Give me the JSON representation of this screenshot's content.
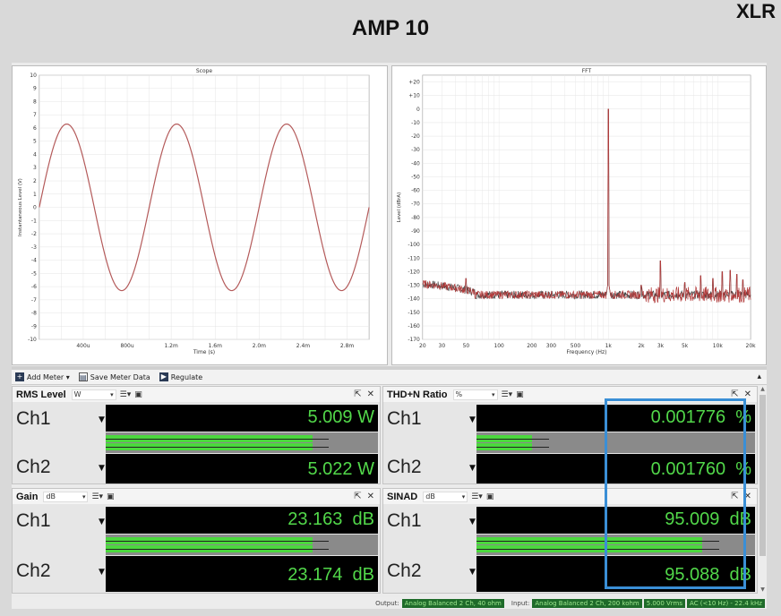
{
  "heading": {
    "title": "AMP 10",
    "corner": "XLR"
  },
  "chart_data": [
    {
      "type": "line",
      "title": "Scope",
      "xlabel": "Time (s)",
      "ylabel": "Instantaneous Level (V)",
      "xlim": [
        0,
        0.003
      ],
      "ylim": [
        -10,
        10
      ],
      "x_tick_labels": [
        "400u",
        "800u",
        "1.2m",
        "1.6m",
        "2.0m",
        "2.4m",
        "2.8m"
      ],
      "x_tick_values": [
        0.0004,
        0.0008,
        0.0012,
        0.0016,
        0.002,
        0.0024,
        0.0028
      ],
      "y_tick_values": [
        -10,
        -9,
        -8,
        -7,
        -6,
        -5,
        -4,
        -3,
        -2,
        -1,
        0,
        1,
        2,
        3,
        4,
        5,
        6,
        7,
        8,
        9,
        10
      ],
      "grid": true,
      "series": [
        {
          "color": "#b45a5a",
          "frequency_hz": 1000,
          "amplitude_v": 6.3,
          "phase_deg": 0
        }
      ]
    },
    {
      "type": "line",
      "title": "FFT",
      "xlabel": "Frequency (Hz)",
      "ylabel": "Level (dBrA)",
      "xscale": "log",
      "xlim": [
        20,
        20000
      ],
      "ylim": [
        -170,
        25
      ],
      "x_tick_labels": [
        "20",
        "30",
        "50",
        "100",
        "200",
        "300",
        "500",
        "1k",
        "2k",
        "3k",
        "5k",
        "10k",
        "20k"
      ],
      "x_tick_values": [
        20,
        30,
        50,
        100,
        200,
        300,
        500,
        1000,
        2000,
        3000,
        5000,
        10000,
        20000
      ],
      "y_tick_labels": [
        "+20",
        "+10",
        "0",
        "-10",
        "-20",
        "-30",
        "-40",
        "-50",
        "-60",
        "-70",
        "-80",
        "-90",
        "-100",
        "-110",
        "-120",
        "-130",
        "-140",
        "-150",
        "-160",
        "-170"
      ],
      "y_tick_values": [
        20,
        10,
        0,
        -10,
        -20,
        -30,
        -40,
        -50,
        -60,
        -70,
        -80,
        -90,
        -100,
        -110,
        -120,
        -130,
        -140,
        -150,
        -160,
        -170
      ],
      "grid": true,
      "noise_floor_db": -137,
      "peaks": [
        {
          "freq": 50,
          "level": -125
        },
        {
          "freq": 1000,
          "level": 0
        },
        {
          "freq": 2000,
          "level": -130
        },
        {
          "freq": 3000,
          "level": -112
        },
        {
          "freq": 5000,
          "level": -128
        },
        {
          "freq": 7000,
          "level": -123
        },
        {
          "freq": 9000,
          "level": -125
        },
        {
          "freq": 11000,
          "level": -120
        },
        {
          "freq": 13000,
          "level": -119
        },
        {
          "freq": 15000,
          "level": -122
        },
        {
          "freq": 17000,
          "level": -126
        }
      ],
      "series": [
        {
          "color": "#444444"
        },
        {
          "color": "#b23a3a"
        }
      ]
    }
  ],
  "toolbar": {
    "add_meter": "Add Meter",
    "save_meter_data": "Save Meter Data",
    "regulate": "Regulate"
  },
  "meters": {
    "rms": {
      "title": "RMS Level",
      "unit": "W",
      "ch1": {
        "label": "Ch1",
        "value": "5.009",
        "unit": "W",
        "level": 0.76
      },
      "ch2": {
        "label": "Ch2",
        "value": "5.022",
        "unit": "W",
        "level": 0.76
      }
    },
    "thdn": {
      "title": "THD+N Ratio",
      "unit": "%",
      "ch1": {
        "label": "Ch1",
        "value": "0.001776",
        "unit": "%",
        "level": 0.2
      },
      "ch2": {
        "label": "Ch2",
        "value": "0.001760",
        "unit": "%",
        "level": 0.2
      }
    },
    "gain": {
      "title": "Gain",
      "unit": "dB",
      "ch1": {
        "label": "Ch1",
        "value": "23.163",
        "unit": "dB",
        "level": 0.76
      },
      "ch2": {
        "label": "Ch2",
        "value": "23.174",
        "unit": "dB",
        "level": 0.76
      }
    },
    "sinad": {
      "title": "SINAD",
      "unit": "dB",
      "ch1": {
        "label": "Ch1",
        "value": "95.009",
        "unit": "dB",
        "level": 0.81
      },
      "ch2": {
        "label": "Ch2",
        "value": "95.088",
        "unit": "dB",
        "level": 0.81
      }
    }
  },
  "status": {
    "output_label": "Output:",
    "output_value": "Analog Balanced 2 Ch, 40 ohm",
    "input_label": "Input:",
    "input_value": "Analog Balanced 2 Ch, 200 kohm",
    "range": "5.000 Vrms",
    "bandwidth": "AC (<10 Hz) - 22.4 kHz"
  }
}
